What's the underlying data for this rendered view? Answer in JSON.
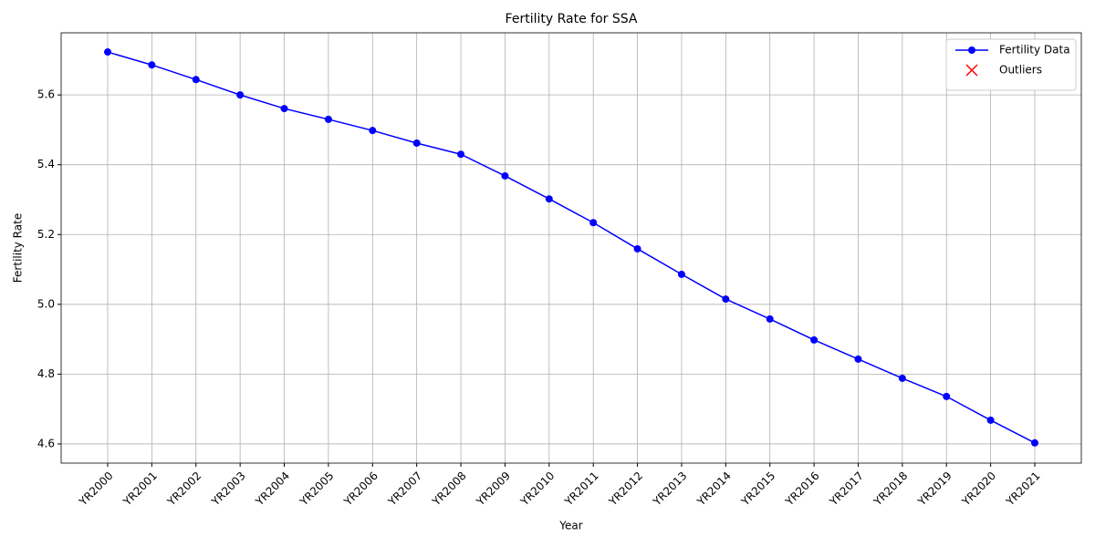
{
  "chart_data": {
    "type": "line",
    "title": "Fertility Rate for SSA",
    "x_label": "Year",
    "y_label": "Fertility Rate",
    "categories": [
      "YR2000",
      "YR2001",
      "YR2002",
      "YR2003",
      "YR2004",
      "YR2005",
      "YR2006",
      "YR2007",
      "YR2008",
      "YR2009",
      "YR2010",
      "YR2011",
      "YR2012",
      "YR2013",
      "YR2014",
      "YR2015",
      "YR2016",
      "YR2017",
      "YR2018",
      "YR2019",
      "YR2020",
      "YR2021"
    ],
    "series": [
      {
        "name": "Fertility Data",
        "color": "#0000ff",
        "marker": "o",
        "values": [
          5.723,
          5.686,
          5.644,
          5.6,
          5.561,
          5.53,
          5.498,
          5.462,
          5.43,
          5.368,
          5.302,
          5.234,
          5.159,
          5.086,
          5.015,
          4.958,
          4.898,
          4.843,
          4.788,
          4.736,
          4.668,
          4.603
        ]
      },
      {
        "name": "Outliers",
        "color": "#ff0000",
        "marker": "x",
        "values": [
          null,
          null,
          null,
          null,
          null,
          null,
          null,
          null,
          null,
          null,
          null,
          null,
          null,
          null,
          null,
          null,
          null,
          null,
          null,
          null,
          null,
          null
        ]
      }
    ],
    "ylim": [
      4.545,
      5.778
    ],
    "yticks": [
      4.6,
      4.8,
      {
        "value": 5,
        "label": "5.0"
      },
      5.2,
      5.4,
      5.6
    ],
    "grid": true,
    "legend": "upper right"
  }
}
